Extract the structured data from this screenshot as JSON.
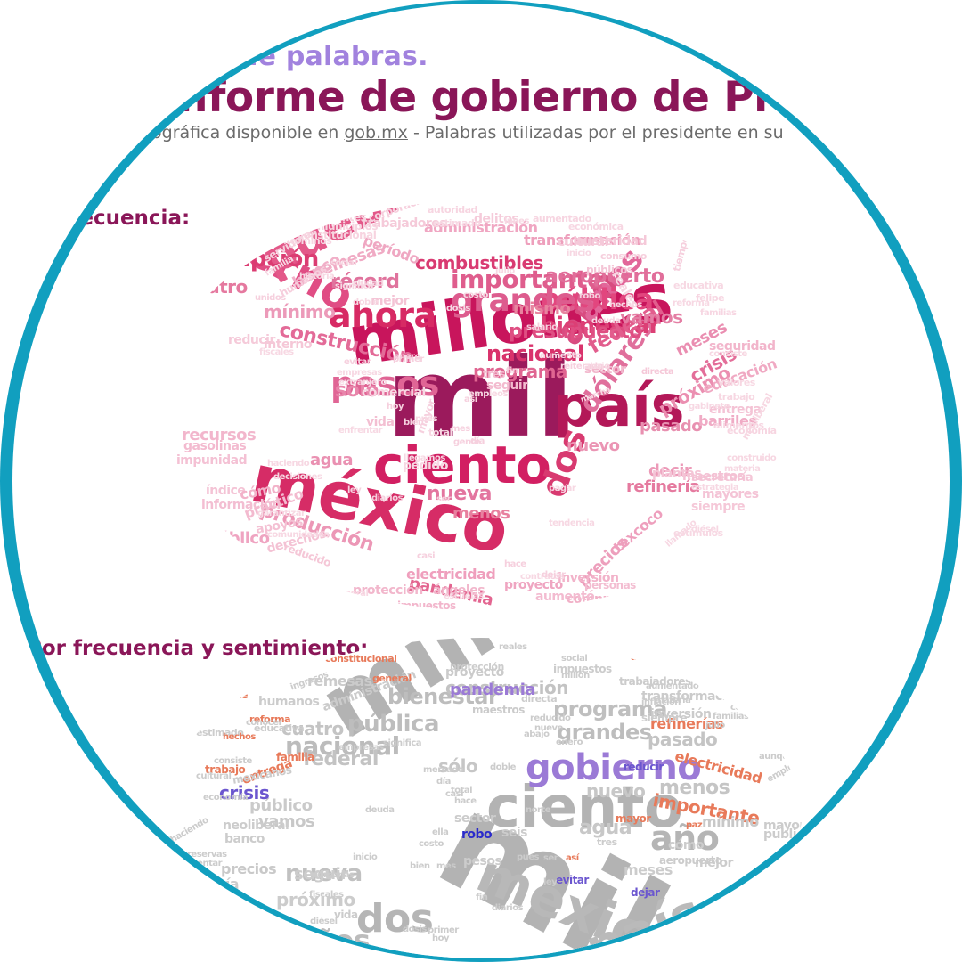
{
  "header": {
    "title_partial": "de palabras.",
    "title_main": "nforme de gobierno de Presid",
    "subtitle_pre": "nográfica disponible en ",
    "subtitle_link": "gob.mx",
    "subtitle_post": " - Palabras utilizadas por el presidente en su"
  },
  "sections": {
    "frequency_label": "recuencia:",
    "sentiment_label": "Por frecuencia y sentimiento:"
  },
  "colors": {
    "ring": "#119fbf",
    "title": "#8a1658",
    "subtitle_top": "#a182de",
    "cloud1_dark": "#9b1a5c",
    "cloud1_mid": "#d12d6a",
    "cloud1_light": "#f07aa6",
    "cloud2_gray": "#b5b5b5",
    "cloud2_purple": "#9b7ad6",
    "cloud2_orange": "#e87a5a",
    "cloud2_blue": "#3a3acb"
  },
  "cloud_frequency": [
    {
      "text": "mil",
      "c": "#9b1a5c"
    },
    {
      "text": "millones",
      "c": "#c8155c"
    },
    {
      "text": "país",
      "c": "#b31858"
    },
    {
      "text": "ciento",
      "c": "#d21f62"
    },
    {
      "text": "méxico",
      "c": "#d62c66"
    },
    {
      "text": "gobierno",
      "c": "#e04d84"
    },
    {
      "text": "pueblo",
      "c": "#e35889"
    },
    {
      "text": "ahora",
      "c": "#d72a64"
    },
    {
      "text": "año",
      "c": "#d84c80"
    },
    {
      "text": "años",
      "c": "#e2669a"
    },
    {
      "text": "dos",
      "c": "#d83a70"
    },
    {
      "text": "pesos",
      "c": "#e06595"
    },
    {
      "text": "pública",
      "c": "#e2467e"
    },
    {
      "text": "grandes",
      "c": "#dd5c8e"
    },
    {
      "text": "dólares",
      "c": "#e06f9c"
    },
    {
      "text": "corrupción",
      "c": "#db3c72"
    },
    {
      "text": "nacional",
      "c": "#d9336c"
    },
    {
      "text": "bienestar",
      "c": "#dc3f75"
    },
    {
      "text": "presupuesto",
      "c": "#df4e82"
    },
    {
      "text": "construcción",
      "c": "#e36b98"
    },
    {
      "text": "programa",
      "c": "#e06591"
    },
    {
      "text": "importante",
      "c": "#df5d8d"
    },
    {
      "text": "aeropuerto",
      "c": "#e16e9a"
    },
    {
      "text": "combustibles",
      "c": "#d93b72"
    },
    {
      "text": "histórico",
      "c": "#e36a97"
    },
    {
      "text": "manera",
      "c": "#e57aa3"
    },
    {
      "text": "federal",
      "c": "#e25d8d"
    },
    {
      "text": "vamos",
      "c": "#e47ea4"
    },
    {
      "text": "récord",
      "c": "#e0739d"
    },
    {
      "text": "sólo",
      "c": "#e886ab"
    },
    {
      "text": "pobres",
      "c": "#eb8fb2"
    },
    {
      "text": "crisis",
      "c": "#e36e99"
    },
    {
      "text": "meses",
      "c": "#ea8eb1"
    },
    {
      "text": "nueva",
      "c": "#e3759f"
    },
    {
      "text": "menos",
      "c": "#e8809f"
    },
    {
      "text": "agua",
      "c": "#ea91b2"
    },
    {
      "text": "cuatro",
      "c": "#e5799f"
    },
    {
      "text": "política",
      "c": "#e0668f"
    },
    {
      "text": "mínimo",
      "c": "#ec9ab9"
    },
    {
      "text": "mismo",
      "c": "#e8849f"
    },
    {
      "text": "pandemia",
      "c": "#e36590"
    },
    {
      "text": "nuevo",
      "c": "#eb95b4"
    },
    {
      "text": "pasado",
      "c": "#e890b0"
    },
    {
      "text": "decir",
      "c": "#ec9ab8"
    },
    {
      "text": "refinería",
      "c": "#e57a9f"
    },
    {
      "text": "próximo",
      "c": "#eb8fb1"
    },
    {
      "text": "producción",
      "c": "#ec97b6"
    },
    {
      "text": "precios",
      "c": "#ed9fbc"
    },
    {
      "text": "texcoco",
      "c": "#ee9fbd"
    },
    {
      "text": "electricidad",
      "c": "#ef9fbd"
    },
    {
      "text": "público",
      "c": "#efa4c1"
    },
    {
      "text": "transformación",
      "c": "#ee9fbc"
    },
    {
      "text": "administración",
      "c": "#f0a6c2"
    },
    {
      "text": "período",
      "c": "#efa7c2"
    },
    {
      "text": "remesas",
      "c": "#f0aac4"
    },
    {
      "text": "banco",
      "c": "#f1afc8"
    },
    {
      "text": "barriles",
      "c": "#f0abc5"
    },
    {
      "text": "educación",
      "c": "#f0a9c3"
    },
    {
      "text": "seguridad",
      "c": "#f2b5cb"
    },
    {
      "text": "inversión",
      "c": "#f2b3ca"
    },
    {
      "text": "compromisos",
      "c": "#f1b0c7"
    },
    {
      "text": "impuestos",
      "c": "#f2b5cb"
    },
    {
      "text": "protección",
      "c": "#f2b7cc"
    },
    {
      "text": "ángeles",
      "c": "#f2b7cc"
    },
    {
      "text": "proyecto",
      "c": "#efa5c1"
    },
    {
      "text": "aumentó",
      "c": "#f3bbd0"
    },
    {
      "text": "personas",
      "c": "#f3bdd1"
    },
    {
      "text": "recursos",
      "c": "#f2b6cc"
    },
    {
      "text": "gasolinas",
      "c": "#f3bacf"
    },
    {
      "text": "impunidad",
      "c": "#f4c1d4"
    },
    {
      "text": "información",
      "c": "#f3bed2"
    },
    {
      "text": "índice",
      "c": "#f4c3d5"
    },
    {
      "text": "cómo",
      "c": "#f2b2c9"
    },
    {
      "text": "práctico",
      "c": "#f3bacf"
    },
    {
      "text": "apoyos",
      "c": "#f4c0d3"
    },
    {
      "text": "derechos",
      "c": "#f4c2d4"
    },
    {
      "text": "reducido",
      "c": "#f5c7d7"
    },
    {
      "text": "entrega",
      "c": "#f4c3d5"
    },
    {
      "text": "secretaría",
      "c": "#f4c6d7"
    },
    {
      "text": "mayores",
      "c": "#f4c4d6"
    },
    {
      "text": "siempre",
      "c": "#f5c8d8"
    },
    {
      "text": "maestros",
      "c": "#f4c1d4"
    },
    {
      "text": "plantas",
      "c": "#f4c5d6"
    },
    {
      "text": "sector",
      "c": "#f2b8cd"
    },
    {
      "text": "seguir",
      "c": "#f3bbcf"
    },
    {
      "text": "tres",
      "c": "#f3bed1"
    },
    {
      "text": "vida",
      "c": "#f3bfd2"
    },
    {
      "text": "mejor",
      "c": "#f4c3d5"
    },
    {
      "text": "interno",
      "c": "#f5c7d7"
    },
    {
      "text": "reducir",
      "c": "#f5cad9"
    },
    {
      "text": "cultural",
      "c": "#f5c9d9"
    },
    {
      "text": "austeridad",
      "c": "#f5c9d9"
    },
    {
      "text": "trabajadores",
      "c": "#f5cad9"
    },
    {
      "text": "delitos",
      "c": "#f5cbda"
    },
    {
      "text": "públicos",
      "c": "#f4c5d6"
    },
    {
      "text": "consumo",
      "c": "#f6cfdd"
    },
    {
      "text": "mexicanos",
      "c": "#f5cbda"
    },
    {
      "text": "humanos",
      "c": "#f6cddc"
    },
    {
      "text": "servidores",
      "c": "#f6cfdd"
    },
    {
      "text": "corporaciones",
      "c": "#f6cfdd"
    },
    {
      "text": "contribuyentes",
      "c": "#f7d4e0"
    },
    {
      "text": "constitucional",
      "c": "#f7d4e0"
    },
    {
      "text": "municipios",
      "c": "#f7d4e0"
    },
    {
      "text": "autoridad",
      "c": "#f7d5e1"
    },
    {
      "text": "aumentado",
      "c": "#f7d5e1"
    },
    {
      "text": "económica",
      "c": "#f7d6e2"
    },
    {
      "text": "reales",
      "c": "#f7d6e2"
    },
    {
      "text": "tiempo",
      "c": "#f6d0de"
    },
    {
      "text": "felipe",
      "c": "#f7d6e2"
    },
    {
      "text": "familias",
      "c": "#f7d6e2"
    },
    {
      "text": "consiste",
      "c": "#f7d7e2"
    },
    {
      "text": "valores",
      "c": "#f7d7e2"
    },
    {
      "text": "trabajo",
      "c": "#f7d7e2"
    },
    {
      "text": "economía",
      "c": "#f7d5e1"
    },
    {
      "text": "alimentos",
      "c": "#f7d6e2"
    },
    {
      "text": "neoliberal",
      "c": "#f7d7e2"
    },
    {
      "text": "construido",
      "c": "#f7d7e2"
    },
    {
      "text": "materia",
      "c": "#f7d8e3"
    },
    {
      "text": "estrategia",
      "c": "#f7d8e3"
    },
    {
      "text": "estímulos",
      "c": "#f7d8e3"
    },
    {
      "text": "llamado",
      "c": "#f7d8e3"
    },
    {
      "text": "contratos",
      "c": "#f7d8e3"
    },
    {
      "text": "inflación",
      "c": "#f7d8e3"
    },
    {
      "text": "escuelas",
      "c": "#f7d8e3"
    },
    {
      "text": "ingresos",
      "c": "#f7d8e3"
    },
    {
      "text": "conocer",
      "c": "#f7d8e3"
    },
    {
      "text": "general",
      "c": "#f7d8e3"
    },
    {
      "text": "comunidades",
      "c": "#f7d8e3"
    },
    {
      "text": "garantizar",
      "c": "#f7d8e3"
    },
    {
      "text": "decisiones",
      "c": "#f7d8e3"
    },
    {
      "text": "haciendo",
      "c": "#f7d8e3"
    },
    {
      "text": "pedido",
      "c": "#f7d8e3"
    },
    {
      "text": "enfrentar",
      "c": "#f7d8e3"
    },
    {
      "text": "comercial",
      "c": "#f7d8e3"
    },
    {
      "text": "extranjero",
      "c": "#f7d8e3"
    },
    {
      "text": "evitar",
      "c": "#f6d0de"
    },
    {
      "text": "empresas",
      "c": "#f7d8e3"
    },
    {
      "text": "fiscales",
      "c": "#f7d8e3"
    },
    {
      "text": "unidos",
      "c": "#f6d0de"
    },
    {
      "text": "familia",
      "c": "#f7d8e3"
    },
    {
      "text": "historia",
      "c": "#f7d8e3"
    },
    {
      "text": "significa",
      "c": "#f7d8e3"
    },
    {
      "text": "social",
      "c": "#f7d8e3"
    },
    {
      "text": "términos",
      "c": "#f7d8e3"
    },
    {
      "text": "estimado",
      "c": "#f7d8e3"
    },
    {
      "text": "educativa",
      "c": "#f7d8e3"
    },
    {
      "text": "salario",
      "c": "#f6d0de"
    },
    {
      "text": "deuda",
      "c": "#f7d8e3"
    },
    {
      "text": "reforma",
      "c": "#f7d8e3"
    },
    {
      "text": "gabinete",
      "c": "#f7d8e3"
    },
    {
      "text": "robo",
      "c": "#f6d0de"
    },
    {
      "text": "hechos",
      "c": "#f7d8e3"
    },
    {
      "text": "directa",
      "c": "#f5c8d8"
    },
    {
      "text": "reiterado",
      "c": "#f6d0de"
    },
    {
      "text": "aumento",
      "c": "#f7d8e3"
    },
    {
      "text": "empleos",
      "c": "#f7d8e3"
    },
    {
      "text": "fin",
      "c": "#f6d0de"
    },
    {
      "text": "costo",
      "c": "#f7d8e3"
    },
    {
      "text": "dosis",
      "c": "#f7d8e3"
    },
    {
      "text": "marcha",
      "c": "#f7d8e3"
    },
    {
      "text": "diésel",
      "c": "#f7d8e3"
    },
    {
      "text": "abajo",
      "c": "#f7d8e3"
    },
    {
      "text": "pagar",
      "c": "#f7d8e3"
    },
    {
      "text": "tendencia",
      "c": "#f7d8e3"
    },
    {
      "text": "mayor",
      "c": "#f6d0de"
    },
    {
      "text": "total",
      "c": "#f7d8e3"
    },
    {
      "text": "gente",
      "c": "#f6d0de"
    },
    {
      "text": "llegamos",
      "c": "#f7d8e3"
    },
    {
      "text": "bien",
      "c": "#f6d0de"
    },
    {
      "text": "pues",
      "c": "#f7d8e3"
    },
    {
      "text": "así",
      "c": "#f6d0de"
    },
    {
      "text": "día",
      "c": "#f6d0de"
    },
    {
      "text": "mes",
      "c": "#f6d0de"
    },
    {
      "text": "ser",
      "c": "#f6d0de"
    },
    {
      "text": "casi",
      "c": "#f6d0de"
    },
    {
      "text": "hoy",
      "c": "#f6d0de"
    },
    {
      "text": "dejar",
      "c": "#f6d0de"
    },
    {
      "text": "hace",
      "c": "#f6d0de"
    },
    {
      "text": "ley",
      "c": "#f6d0de"
    },
    {
      "text": "diarios",
      "c": "#f6d0de"
    },
    {
      "text": "julio",
      "c": "#f7d8e3"
    },
    {
      "text": "lunes",
      "c": "#f7d8e3"
    },
    {
      "text": "inicio",
      "c": "#f7d8e3"
    },
    {
      "text": "ciudad",
      "c": "#f7d8e3"
    },
    {
      "text": "doble",
      "c": "#f7d8e3"
    },
    {
      "text": "primer",
      "c": "#f6d0de"
    },
    {
      "text": "enero",
      "c": "#f6d0de"
    },
    {
      "text": "norte",
      "c": "#f7d8e3"
    },
    {
      "text": "reservas",
      "c": "#f7d8e3"
    },
    {
      "text": "millón",
      "c": "#f7d8e3"
    },
    {
      "text": "cambio",
      "c": "#f7d8e3"
    }
  ],
  "cloud_sentiment": [
    {
      "text": "mil",
      "c": "#b3b3b3"
    },
    {
      "text": "millones",
      "c": "#b3b3b3"
    },
    {
      "text": "ciento",
      "c": "#b3b3b3"
    },
    {
      "text": "méxico",
      "c": "#b8b8b8"
    },
    {
      "text": "país",
      "c": "#bababa"
    },
    {
      "text": "gobierno",
      "c": "#9b7ad6"
    },
    {
      "text": "año",
      "c": "#b5b5b5"
    },
    {
      "text": "dos",
      "c": "#b5b5b5"
    },
    {
      "text": "años",
      "c": "#bcbcbc"
    },
    {
      "text": "nacional",
      "c": "#bcbcbc"
    },
    {
      "text": "pública",
      "c": "#bdbdbd"
    },
    {
      "text": "bienestar",
      "c": "#bdbdbd"
    },
    {
      "text": "grandes",
      "c": "#bdbdbd"
    },
    {
      "text": "programa",
      "c": "#bfbfbf"
    },
    {
      "text": "importante",
      "c": "#e87a5a"
    },
    {
      "text": "nueva",
      "c": "#c1c1c1"
    },
    {
      "text": "construcción",
      "c": "#c3c3c3"
    },
    {
      "text": "federal",
      "c": "#c3c3c3"
    },
    {
      "text": "pasado",
      "c": "#c4c4c4"
    },
    {
      "text": "cuatro",
      "c": "#c4c4c4"
    },
    {
      "text": "menos",
      "c": "#c5c5c5"
    },
    {
      "text": "sólo",
      "c": "#c6c6c6"
    },
    {
      "text": "nuevo",
      "c": "#c7c7c7"
    },
    {
      "text": "mínimo",
      "c": "#c8c8c8"
    },
    {
      "text": "vamos",
      "c": "#c8c8c8"
    },
    {
      "text": "agua",
      "c": "#c8c8c8"
    },
    {
      "text": "precios",
      "c": "#c9c9c9"
    },
    {
      "text": "público",
      "c": "#cacaca"
    },
    {
      "text": "pandemia",
      "c": "#9b7ad6"
    },
    {
      "text": "crisis",
      "c": "#6b56cf"
    },
    {
      "text": "refinerías",
      "c": "#e87a5a"
    },
    {
      "text": "electricidad",
      "c": "#e87a5a"
    },
    {
      "text": "entrega",
      "c": "#e87a5a"
    },
    {
      "text": "remesas",
      "c": "#cbcbcb"
    },
    {
      "text": "proyecto",
      "c": "#cbcbcb"
    },
    {
      "text": "inversión",
      "c": "#cbcbcb"
    },
    {
      "text": "transformación",
      "c": "#cbcbcb"
    },
    {
      "text": "administración",
      "c": "#cbcbcb"
    },
    {
      "text": "maestros",
      "c": "#cbcbcb"
    },
    {
      "text": "humanos",
      "c": "#cccccc"
    },
    {
      "text": "mexicanos",
      "c": "#cccccc"
    },
    {
      "text": "banco",
      "c": "#cccccc"
    },
    {
      "text": "neoliberal",
      "c": "#cccccc"
    },
    {
      "text": "refinería",
      "c": "#cccccc"
    },
    {
      "text": "próximo",
      "c": "#cccccc"
    },
    {
      "text": "mejor",
      "c": "#cccccc"
    },
    {
      "text": "seguir",
      "c": "#cccccc"
    },
    {
      "text": "meses",
      "c": "#cccccc"
    },
    {
      "text": "aeropuerto",
      "c": "#cccccc"
    },
    {
      "text": "cómo",
      "c": "#cccccc"
    },
    {
      "text": "públicos",
      "c": "#cccccc"
    },
    {
      "text": "mayores",
      "c": "#cccccc"
    },
    {
      "text": "siempre",
      "c": "#cccccc"
    },
    {
      "text": "vida",
      "c": "#cccccc"
    },
    {
      "text": "sector",
      "c": "#cccccc"
    },
    {
      "text": "pesos",
      "c": "#cccccc"
    },
    {
      "text": "robo",
      "c": "#2a2acb"
    },
    {
      "text": "reducir",
      "c": "#6b56cf"
    },
    {
      "text": "evitar",
      "c": "#6b56cf"
    },
    {
      "text": "dejar",
      "c": "#6b56cf"
    },
    {
      "text": "salario",
      "c": "#e87a5a"
    },
    {
      "text": "mayor",
      "c": "#e87a5a"
    },
    {
      "text": "trabajo",
      "c": "#e87a5a"
    },
    {
      "text": "familia",
      "c": "#e87a5a"
    },
    {
      "text": "constitucional",
      "c": "#e87a5a"
    },
    {
      "text": "autoridad",
      "c": "#e87a5a"
    },
    {
      "text": "protección",
      "c": "#cccccc"
    },
    {
      "text": "directa",
      "c": "#cccccc"
    },
    {
      "text": "impuestos",
      "c": "#cccccc"
    },
    {
      "text": "trabajadores",
      "c": "#cccccc"
    },
    {
      "text": "aumentado",
      "c": "#cccccc"
    },
    {
      "text": "inflación",
      "c": "#cccccc"
    },
    {
      "text": "gabinete",
      "c": "#e87a5a"
    },
    {
      "text": "general",
      "c": "#e87a5a"
    },
    {
      "text": "reforma",
      "c": "#e87a5a"
    },
    {
      "text": "educativa",
      "c": "#cccccc"
    },
    {
      "text": "estimado",
      "c": "#cccccc"
    },
    {
      "text": "hechos",
      "c": "#e87a5a"
    },
    {
      "text": "consiste",
      "c": "#cccccc"
    },
    {
      "text": "cultural",
      "c": "#cccccc"
    },
    {
      "text": "economía",
      "c": "#cccccc"
    },
    {
      "text": "haciendo",
      "c": "#cccccc"
    },
    {
      "text": "enfrentar",
      "c": "#cccccc"
    },
    {
      "text": "reservas",
      "c": "#cccccc"
    },
    {
      "text": "personas",
      "c": "#cccccc"
    },
    {
      "text": "fiscales",
      "c": "#cccccc"
    },
    {
      "text": "diésel",
      "c": "#cccccc"
    },
    {
      "text": "dosis",
      "c": "#cccccc"
    },
    {
      "text": "hoy",
      "c": "#cccccc"
    },
    {
      "text": "inicio",
      "c": "#cccccc"
    },
    {
      "text": "bien",
      "c": "#cccccc"
    },
    {
      "text": "costo",
      "c": "#cccccc"
    },
    {
      "text": "mes",
      "c": "#cccccc"
    },
    {
      "text": "fin",
      "c": "#cccccc"
    },
    {
      "text": "diarios",
      "c": "#cccccc"
    },
    {
      "text": "ley",
      "c": "#cccccc"
    },
    {
      "text": "deuda",
      "c": "#cccccc"
    },
    {
      "text": "casi",
      "c": "#cccccc"
    },
    {
      "text": "día",
      "c": "#cccccc"
    },
    {
      "text": "ella",
      "c": "#cccccc"
    },
    {
      "text": "total",
      "c": "#cccccc"
    },
    {
      "text": "hace",
      "c": "#cccccc"
    },
    {
      "text": "doble",
      "c": "#cccccc"
    },
    {
      "text": "nueve",
      "c": "#cccccc"
    },
    {
      "text": "enero",
      "c": "#cccccc"
    },
    {
      "text": "norte",
      "c": "#cccccc"
    },
    {
      "text": "pues",
      "c": "#cccccc"
    },
    {
      "text": "ser",
      "c": "#cccccc"
    },
    {
      "text": "seis",
      "c": "#cccccc"
    },
    {
      "text": "tres",
      "c": "#cccccc"
    },
    {
      "text": "así",
      "c": "#e87a5a"
    },
    {
      "text": "paz",
      "c": "#e87a5a"
    },
    {
      "text": "julio",
      "c": "#cccccc"
    },
    {
      "text": "aunque",
      "c": "#cccccc"
    },
    {
      "text": "empleos",
      "c": "#cccccc"
    },
    {
      "text": "comunidades",
      "c": "#cccccc"
    },
    {
      "text": "familias",
      "c": "#cccccc"
    },
    {
      "text": "materia",
      "c": "#cccccc"
    },
    {
      "text": "reducido",
      "c": "#cccccc"
    },
    {
      "text": "abajo",
      "c": "#cccccc"
    },
    {
      "text": "conocer",
      "c": "#cccccc"
    },
    {
      "text": "empresas",
      "c": "#cccccc"
    },
    {
      "text": "significa",
      "c": "#cccccc"
    },
    {
      "text": "mercado",
      "c": "#cccccc"
    },
    {
      "text": "reales",
      "c": "#cccccc"
    },
    {
      "text": "social",
      "c": "#cccccc"
    },
    {
      "text": "ingresos",
      "c": "#cccccc"
    },
    {
      "text": "millón",
      "c": "#cccccc"
    },
    {
      "text": "primer",
      "c": "#cccccc"
    },
    {
      "text": "aumento",
      "c": "#cccccc"
    },
    {
      "text": "dos",
      "c": "#cccccc"
    }
  ]
}
